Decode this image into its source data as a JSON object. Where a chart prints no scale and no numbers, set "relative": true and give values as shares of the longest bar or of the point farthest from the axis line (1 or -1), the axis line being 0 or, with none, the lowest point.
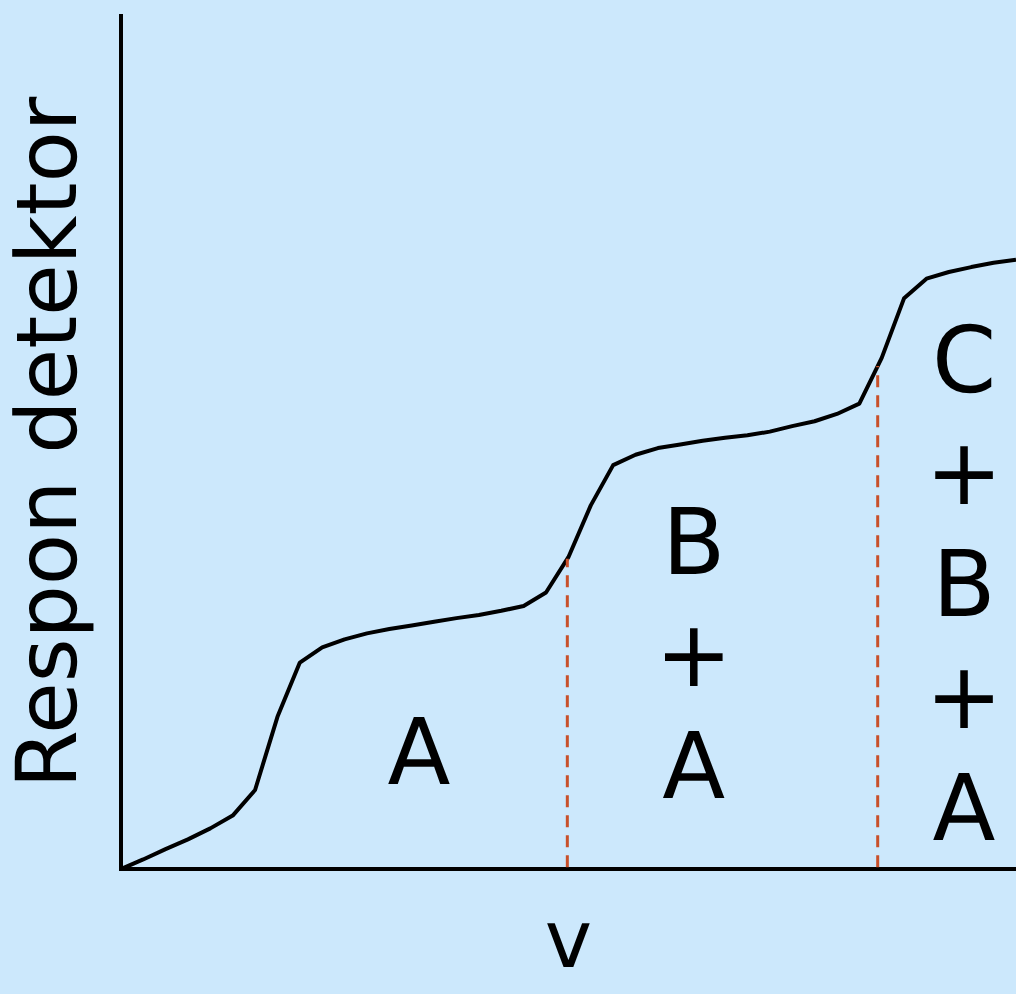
{
  "chart_data": {
    "type": "line",
    "relative": true,
    "xlabel": "v",
    "ylabel": "Respon detektor",
    "grid": false,
    "legend": false,
    "marker": "none",
    "line_style": "solid",
    "categories": [
      null,
      null,
      null,
      null,
      null,
      null,
      null,
      null,
      null,
      null,
      null,
      null,
      null,
      null,
      null,
      null,
      null,
      null,
      null,
      null,
      null,
      null,
      null,
      null,
      null,
      null,
      null,
      null,
      null,
      null,
      null,
      null,
      null,
      null,
      null,
      null,
      null,
      null,
      null,
      null,
      null
    ],
    "series": [
      {
        "color": "#000000",
        "values": [
          0,
          0.016,
          0.033,
          0.049,
          0.067,
          0.088,
          0.13,
          0.25,
          0.339,
          0.364,
          0.377,
          0.387,
          0.394,
          0.4,
          0.406,
          0.412,
          0.417,
          0.424,
          0.432,
          0.454,
          0.512,
          0.597,
          0.663,
          0.68,
          0.691,
          0.697,
          0.703,
          0.708,
          0.712,
          0.718,
          0.727,
          0.735,
          0.747,
          0.764,
          0.839,
          0.937,
          0.969,
          0.98,
          0.988,
          0.995,
          1
        ]
      }
    ],
    "annotations": [
      "A",
      "B\n+\nA",
      "C\n+\nB\n+\nA"
    ]
  }
}
